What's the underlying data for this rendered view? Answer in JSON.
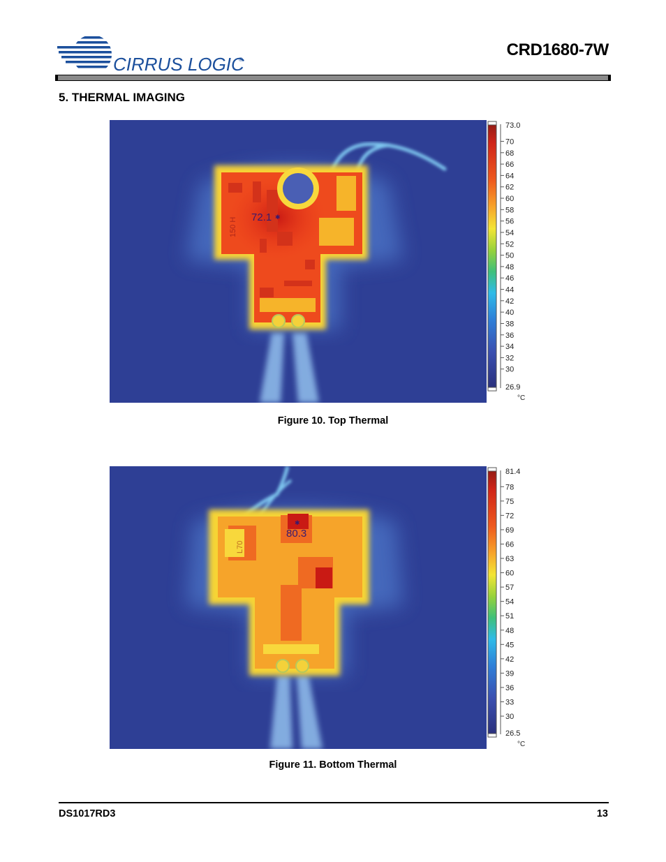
{
  "header": {
    "logo_text": "CIRRUS LOGIC",
    "logo_mark": "®",
    "doc_title": "CRD1680-7W"
  },
  "section": {
    "heading": "5.  THERMAL IMAGING"
  },
  "figures": [
    {
      "caption": "Figure 10.  Top Thermal",
      "hotspot_label": "72.1",
      "scale_max": "73.0",
      "scale_min": "26.9",
      "scale_ticks": [
        "70",
        "68",
        "66",
        "64",
        "62",
        "60",
        "58",
        "56",
        "54",
        "52",
        "50",
        "48",
        "46",
        "44",
        "42",
        "40",
        "38",
        "36",
        "34",
        "32",
        "30"
      ],
      "unit": "°C",
      "board_silk": "150 H"
    },
    {
      "caption": "Figure 11.  Bottom Thermal",
      "hotspot_label": "80.3",
      "scale_max": "81.4",
      "scale_min": "26.5",
      "scale_ticks": [
        "78",
        "75",
        "72",
        "69",
        "66",
        "63",
        "60",
        "57",
        "54",
        "51",
        "48",
        "45",
        "42",
        "39",
        "36",
        "33",
        "30"
      ],
      "unit": "°C",
      "board_silk": "L70"
    }
  ],
  "footer": {
    "doc_id": "DS1017RD3",
    "page_number": "13"
  },
  "colors": {
    "accent": "#1b4f9c",
    "thermal_bg": "#2e3f95"
  }
}
